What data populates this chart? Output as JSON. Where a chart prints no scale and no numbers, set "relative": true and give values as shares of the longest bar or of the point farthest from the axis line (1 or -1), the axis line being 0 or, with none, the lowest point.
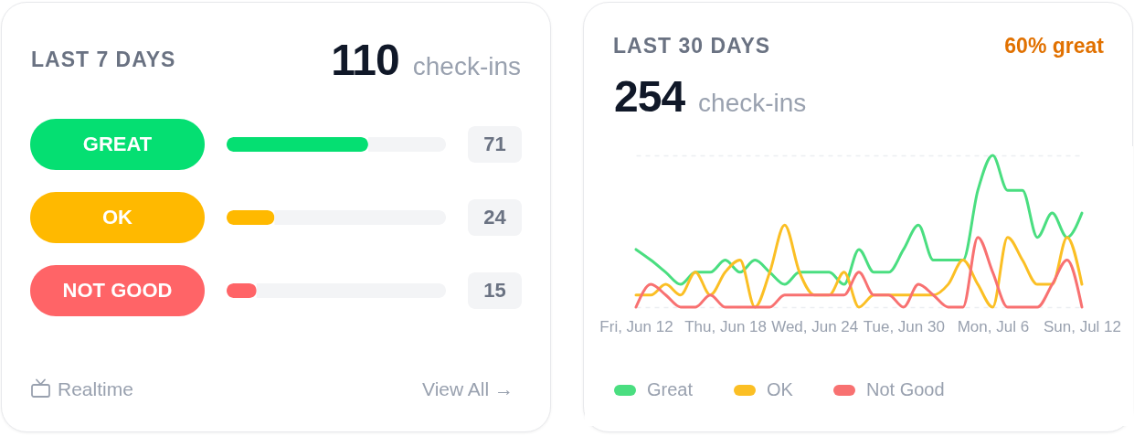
{
  "chart_data": [
    {
      "type": "bar",
      "orientation": "horizontal",
      "title": "LAST 7 DAYS",
      "subtitle": "110 check-ins",
      "categories": [
        "GREAT",
        "OK",
        "NOT GOOD"
      ],
      "values": [
        71,
        24,
        15
      ],
      "colors": [
        "#05df72",
        "#ffb900",
        "#ff6467"
      ],
      "xlim": [
        0,
        110
      ],
      "data_labels": true,
      "tick_labels": "y",
      "annotations": [
        "Realtime",
        "View All →"
      ]
    },
    {
      "type": "line",
      "title": "LAST 30 DAYS",
      "subtitle": "254 check-ins",
      "annotations": [
        "60% great"
      ],
      "relative": true,
      "grid": "y",
      "legend": "bottom left",
      "tick_labels": "x",
      "x": [
        "--06-12",
        "--06-13",
        "--06-14",
        "--06-15",
        "--06-16",
        "--06-17",
        "--06-18",
        "--06-19",
        "--06-20",
        "--06-21",
        "--06-22",
        "--06-23",
        "--06-24",
        "--06-25",
        "--06-26",
        "--06-27",
        "--06-28",
        "--06-29",
        "--06-30",
        "--07-01",
        "--07-02",
        "--07-03",
        "--07-04",
        "--07-05",
        "--07-06",
        "--07-07",
        "--07-08",
        "--07-09",
        "--07-10",
        "--07-11",
        "--07-12"
      ],
      "xlim": [
        "--06-12",
        "--07-12"
      ],
      "xticks": [
        {
          "value": "--06-12",
          "label": "Fri, Jun 12"
        },
        {
          "value": "--06-18",
          "label": "Thu, Jun 18"
        },
        {
          "value": "--06-24",
          "label": "Wed, Jun 24"
        },
        {
          "value": "--06-30",
          "label": "Tue, Jun 30"
        },
        {
          "value": "--07-06",
          "label": "Mon, Jul 6"
        },
        {
          "value": "--07-12",
          "label": "Sun, Jul 12"
        }
      ],
      "series": [
        {
          "name": "Great",
          "color": "#4ade80",
          "values": [
            0.38,
            0.31,
            0.23,
            0.15,
            0.23,
            0.23,
            0.31,
            0.23,
            0.31,
            0.23,
            0.15,
            0.23,
            0.23,
            0.23,
            0.15,
            0.38,
            0.23,
            0.23,
            0.38,
            0.54,
            0.31,
            0.31,
            0.31,
            0.77,
            1,
            0.77,
            0.77,
            0.46,
            0.62,
            0.46,
            0.62
          ]
        },
        {
          "name": "OK",
          "color": "#fbbf24",
          "values": [
            0.08,
            0.08,
            0.15,
            0.08,
            0.23,
            0.08,
            0.23,
            0.31,
            0,
            0.23,
            0.54,
            0.23,
            0.08,
            0.08,
            0.23,
            0,
            0.08,
            0.08,
            0.08,
            0.08,
            0.08,
            0.15,
            0.31,
            0.15,
            0,
            0.46,
            0.31,
            0.15,
            0.15,
            0.46,
            0.15
          ]
        },
        {
          "name": "Not Good",
          "color": "#f87171",
          "values": [
            0,
            0.15,
            0.08,
            0,
            0,
            0.08,
            0,
            0,
            0,
            0,
            0.08,
            0.08,
            0.08,
            0.08,
            0.08,
            0.23,
            0.08,
            0.08,
            0,
            0.15,
            0.08,
            0,
            0,
            0.46,
            0.23,
            0,
            0,
            0,
            0.15,
            0.31,
            0
          ]
        }
      ]
    }
  ]
}
